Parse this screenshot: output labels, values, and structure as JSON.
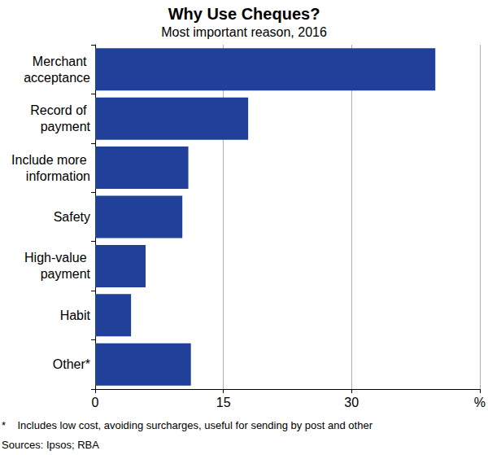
{
  "chart_data": {
    "type": "bar",
    "orientation": "horizontal",
    "title": "Why Use Cheques?",
    "subtitle": "Most important reason, 2016",
    "categories": [
      "Merchant acceptance",
      "Record of payment",
      "Include more information",
      "Safety",
      "High-value payment",
      "Habit",
      "Other*"
    ],
    "values": [
      39.8,
      17.9,
      10.9,
      10.2,
      5.9,
      4.2,
      11.2
    ],
    "color": "#21409a",
    "xlim": [
      0,
      45
    ],
    "xticks": [
      0,
      15,
      30,
      {
        "value": 45,
        "label": "%"
      }
    ],
    "grid": true,
    "notes": [
      "*    Includes low cost, avoiding surcharges, useful for sending by post and other",
      "Sources: Ipsos; RBA"
    ]
  }
}
